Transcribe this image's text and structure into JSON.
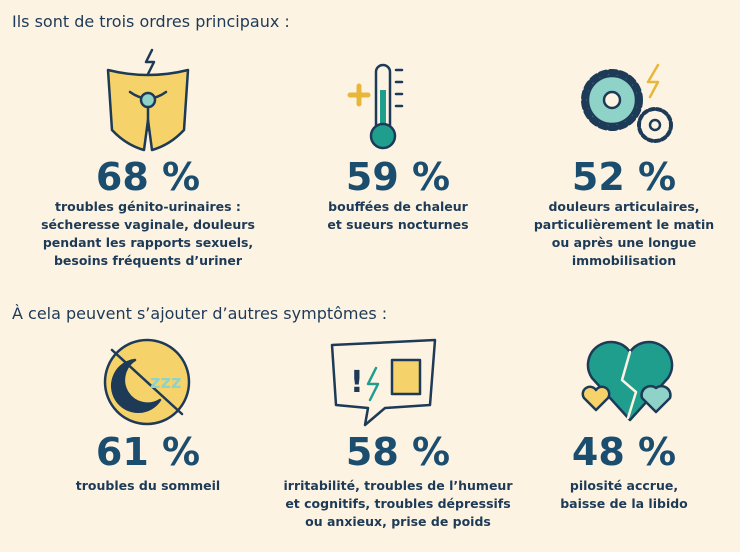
{
  "sections": [
    {
      "heading": "Ils sont de trois ordres principaux :",
      "items": [
        {
          "percent": "68 %",
          "lines": [
            "troubles génito-urinaires :",
            "sécheresse vaginale, douleurs",
            "pendant les rapports sexuels,",
            "besoins fréquents d’uriner"
          ]
        },
        {
          "percent": "59 %",
          "lines": [
            "bouffées de chaleur",
            "et sueurs nocturnes"
          ]
        },
        {
          "percent": "52 %",
          "lines": [
            "douleurs articulaires,",
            "particulièrement le matin",
            "ou après une longue",
            "immobilisation"
          ]
        }
      ]
    },
    {
      "heading": "À cela peuvent s’ajouter d’autres symptômes :",
      "items": [
        {
          "percent": "61 %",
          "lines": [
            "troubles du sommeil"
          ]
        },
        {
          "percent": "58 %",
          "lines": [
            "irritabilité, troubles de l’humeur",
            "et cognitifs, troubles dépressifs",
            "ou anxieux, prise de poids"
          ]
        },
        {
          "percent": "48 %",
          "lines": [
            "pilosité accrue,",
            "baisse de la libido"
          ]
        }
      ]
    }
  ]
}
